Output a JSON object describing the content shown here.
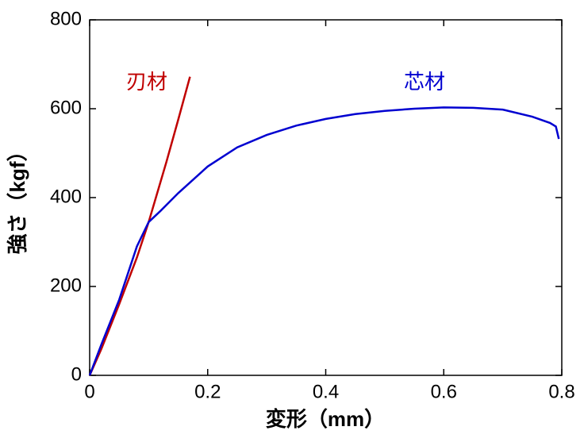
{
  "chart_data": {
    "type": "line",
    "xlabel": "変形（mm）",
    "ylabel": "強さ（kgf）",
    "xlim": [
      0,
      0.8
    ],
    "xticks": [
      0,
      0.2,
      0.4,
      0.6,
      0.8
    ],
    "ylim": [
      0,
      800
    ],
    "yticks": [
      0,
      200,
      400,
      600,
      800
    ],
    "grid": false,
    "series": [
      {
        "name": "刃材",
        "color": "#c00000",
        "x": [
          0,
          0.02,
          0.05,
          0.08,
          0.1,
          0.13,
          0.15,
          0.17
        ],
        "values": [
          0,
          60,
          160,
          265,
          345,
          480,
          575,
          672
        ]
      },
      {
        "name": "芯材",
        "color": "#0000d0",
        "x": [
          0,
          0.02,
          0.05,
          0.08,
          0.1,
          0.12,
          0.15,
          0.2,
          0.25,
          0.3,
          0.35,
          0.4,
          0.45,
          0.5,
          0.55,
          0.6,
          0.65,
          0.7,
          0.75,
          0.78,
          0.79,
          0.795
        ],
        "values": [
          0,
          70,
          170,
          290,
          345,
          370,
          410,
          470,
          513,
          541,
          562,
          577,
          588,
          595,
          600,
          603,
          602,
          598,
          582,
          568,
          560,
          532
        ]
      }
    ]
  }
}
